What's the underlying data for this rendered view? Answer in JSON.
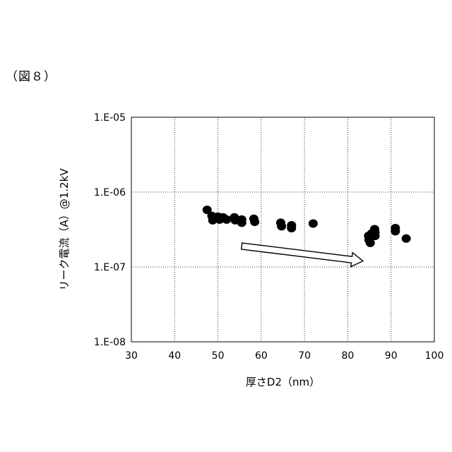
{
  "figure_label": "（図８）",
  "chart_data": {
    "type": "scatter",
    "title": "",
    "xlabel": "厚さD2（nm）",
    "ylabel": "リーク電流（A）@1.2kV",
    "xlim": [
      30,
      100
    ],
    "ylim": [
      1e-08,
      1e-05
    ],
    "yscale": "log",
    "grid": true,
    "grid_style": "dotted",
    "legend": "none",
    "marker_color": "#000000",
    "x_ticks": [
      {
        "value": 30,
        "label": "30"
      },
      {
        "value": 40,
        "label": "40"
      },
      {
        "value": 50,
        "label": "50"
      },
      {
        "value": 60,
        "label": "60"
      },
      {
        "value": 70,
        "label": "70"
      },
      {
        "value": 80,
        "label": "80"
      },
      {
        "value": 90,
        "label": "90"
      },
      {
        "value": 100,
        "label": "100"
      }
    ],
    "y_ticks": [
      {
        "value": 1e-05,
        "label": "1.E-05"
      },
      {
        "value": 1e-06,
        "label": "1.E-06"
      },
      {
        "value": 1e-07,
        "label": "1.E-07"
      },
      {
        "value": 1e-08,
        "label": "1.E-08"
      }
    ],
    "points": [
      {
        "x": 47.5,
        "y": 5.8e-07
      },
      {
        "x": 48.6,
        "y": 4.8e-07
      },
      {
        "x": 48.8,
        "y": 4.2e-07
      },
      {
        "x": 50.0,
        "y": 4.7e-07
      },
      {
        "x": 50.4,
        "y": 4.3e-07
      },
      {
        "x": 51.2,
        "y": 4.6e-07
      },
      {
        "x": 52.0,
        "y": 4.3e-07
      },
      {
        "x": 53.8,
        "y": 4.6e-07
      },
      {
        "x": 54.0,
        "y": 4.2e-07
      },
      {
        "x": 55.5,
        "y": 4.3e-07
      },
      {
        "x": 55.5,
        "y": 3.9e-07
      },
      {
        "x": 58.3,
        "y": 4.4e-07
      },
      {
        "x": 58.5,
        "y": 4e-07
      },
      {
        "x": 64.5,
        "y": 3.9e-07
      },
      {
        "x": 64.7,
        "y": 3.5e-07
      },
      {
        "x": 67.0,
        "y": 3.6e-07
      },
      {
        "x": 67.0,
        "y": 3.3e-07
      },
      {
        "x": 72.0,
        "y": 3.8e-07
      },
      {
        "x": 84.8,
        "y": 2.6e-07
      },
      {
        "x": 84.9,
        "y": 2.3e-07
      },
      {
        "x": 85.2,
        "y": 2.1e-07
      },
      {
        "x": 85.5,
        "y": 2.8e-07
      },
      {
        "x": 86.2,
        "y": 3.2e-07
      },
      {
        "x": 86.3,
        "y": 2.9e-07
      },
      {
        "x": 86.3,
        "y": 2.6e-07
      },
      {
        "x": 91.0,
        "y": 3.3e-07
      },
      {
        "x": 91.0,
        "y": 3e-07
      },
      {
        "x": 93.5,
        "y": 2.4e-07
      }
    ],
    "annotation": {
      "type": "arrow",
      "from": {
        "x": 55.5,
        "y": 1.9e-07
      },
      "to": {
        "x": 83.5,
        "y": 1.2e-07
      },
      "style": "hollow"
    }
  }
}
